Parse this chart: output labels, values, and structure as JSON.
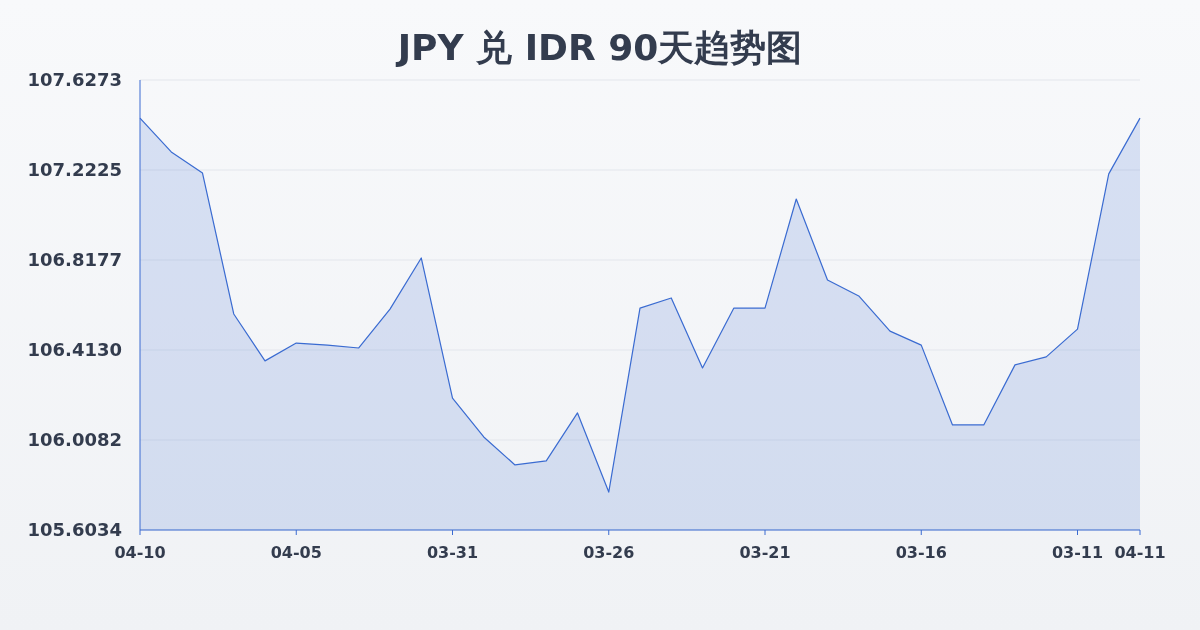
{
  "chart_data": {
    "type": "area",
    "title": "JPY 兑 IDR 90天趋势图",
    "categories": [
      "04-10",
      null,
      null,
      null,
      null,
      "04-05",
      null,
      null,
      null,
      null,
      "03-31",
      null,
      null,
      null,
      null,
      "03-26",
      null,
      null,
      null,
      null,
      "03-21",
      null,
      null,
      null,
      null,
      "03-16",
      null,
      null,
      null,
      null,
      "03-11",
      null,
      "04-11"
    ],
    "values": [
      107.456,
      107.304,
      107.209,
      106.575,
      106.364,
      106.444,
      106.435,
      106.422,
      106.597,
      106.827,
      106.197,
      106.022,
      105.896,
      105.914,
      106.13,
      105.774,
      106.601,
      106.647,
      106.332,
      106.601,
      106.601,
      107.092,
      106.728,
      106.656,
      106.498,
      106.435,
      106.076,
      106.076,
      106.346,
      106.382,
      106.507,
      107.205,
      107.456
    ],
    "color": "#3a6bd1",
    "ylim": [
      105.6034,
      107.6273
    ],
    "yticks": [
      105.6034,
      106.0082,
      {
        "value": 106.413,
        "label": "106.4130"
      },
      106.8177,
      107.2225,
      107.6273
    ],
    "grid": "y"
  }
}
